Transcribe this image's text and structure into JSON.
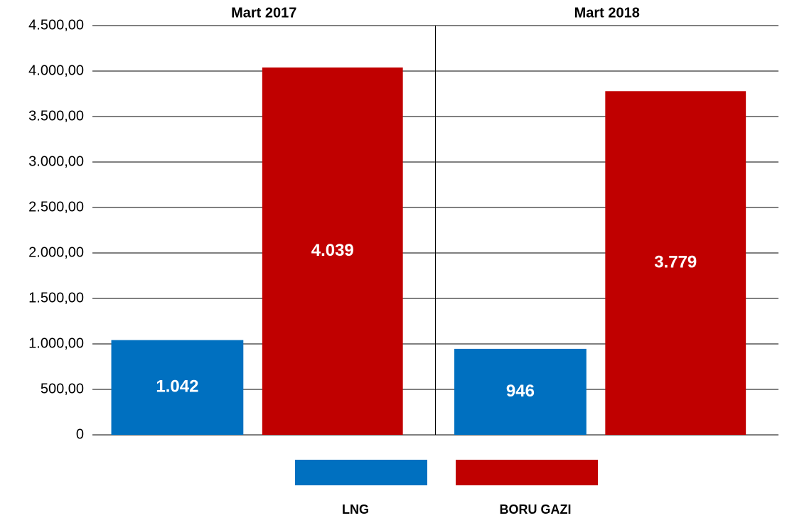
{
  "chart_data": {
    "type": "bar",
    "categories": [
      "Mart 2017",
      "Mart 2018"
    ],
    "series": [
      {
        "name": "LNG",
        "color": "#0070c0",
        "values": [
          1042,
          946
        ],
        "value_labels": [
          "1.042",
          "946"
        ]
      },
      {
        "name": "BORU GAZI",
        "color": "#c00000",
        "values": [
          4039,
          3779
        ],
        "value_labels": [
          "4.039",
          "3.779"
        ]
      }
    ],
    "ylim": [
      0,
      4500
    ],
    "yticks": [
      0,
      {
        "value": 500,
        "label": "500,00"
      },
      {
        "value": 1000,
        "label": "1.000,00"
      },
      {
        "value": 1500,
        "label": "1.500,00"
      },
      {
        "value": 2000,
        "label": "2.000,00"
      },
      {
        "value": 2500,
        "label": "2.500,00"
      },
      {
        "value": 3000,
        "label": "3.000,00"
      },
      {
        "value": 3500,
        "label": "3.500,00"
      },
      {
        "value": 4000,
        "label": "4.000,00"
      },
      {
        "value": 4500,
        "label": "4.500,00"
      }
    ],
    "grid": true,
    "legend": "bottom"
  }
}
